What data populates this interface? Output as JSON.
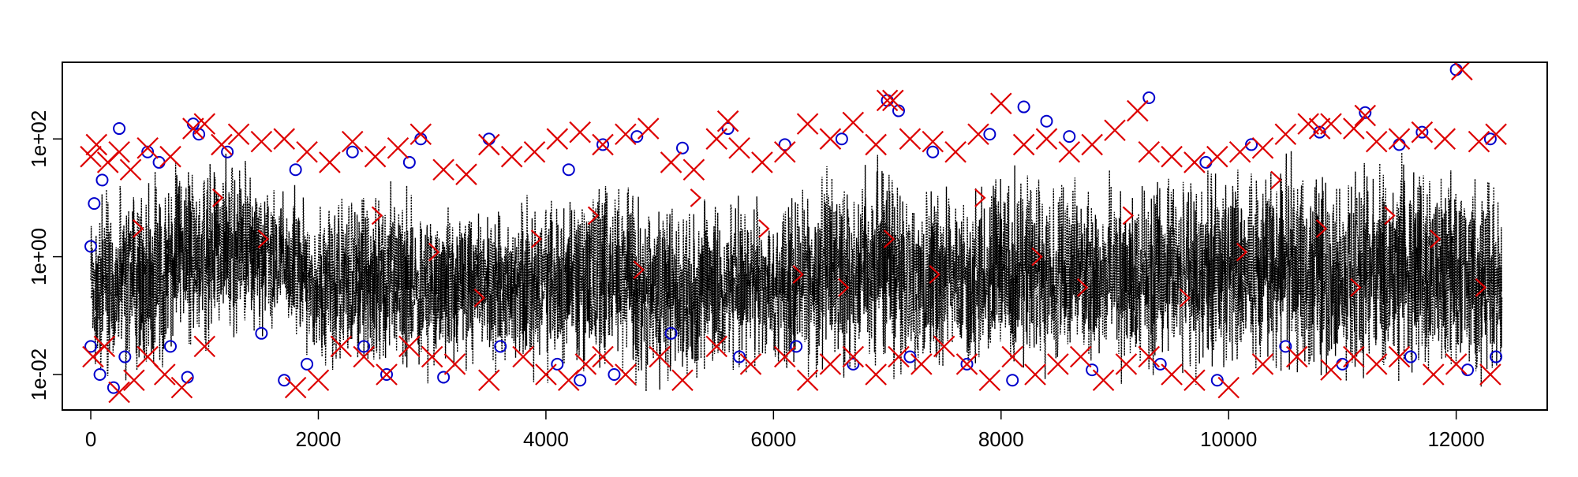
{
  "chart_data": {
    "type": "line",
    "title": "",
    "xlabel": "",
    "ylabel": "",
    "x_scale": "linear",
    "y_scale": "log10",
    "xlim": [
      -250,
      12800
    ],
    "ylim": [
      0.0025,
      2000
    ],
    "x_ticks": [
      0,
      2000,
      4000,
      6000,
      8000,
      10000,
      12000
    ],
    "x_tick_labels": [
      "0",
      "2000",
      "4000",
      "6000",
      "8000",
      "10000",
      "12000"
    ],
    "y_ticks": [
      0.01,
      1,
      100
    ],
    "y_tick_labels": [
      "1e-02",
      "1e+00",
      "1e+02"
    ],
    "grid": false,
    "legend": "none",
    "x_range": [
      0,
      12400
    ],
    "series": [
      {
        "style": "dotted-line",
        "color": "#000000",
        "x": [
          0,
          500,
          1000,
          1500,
          2000,
          2500,
          3000,
          3500,
          4000,
          4500,
          5000,
          5500,
          6000,
          6500,
          7000,
          7500,
          8000,
          8500,
          9000,
          9500,
          10000,
          10500,
          11000,
          11500,
          12000,
          12400
        ],
        "upper": [
          20,
          40,
          80,
          40,
          15,
          30,
          15,
          8,
          20,
          50,
          15,
          20,
          10,
          80,
          100,
          20,
          60,
          50,
          30,
          40,
          50,
          70,
          60,
          80,
          50,
          40
        ],
        "lower": [
          0.005,
          0.006,
          0.02,
          0.04,
          0.01,
          0.008,
          0.006,
          0.01,
          0.005,
          0.006,
          0.004,
          0.006,
          0.008,
          0.004,
          0.004,
          0.008,
          0.005,
          0.008,
          0.005,
          0.006,
          0.005,
          0.006,
          0.005,
          0.005,
          0.005,
          0.006
        ]
      },
      {
        "style": "circle-markers",
        "color": "#0000cc",
        "x": [
          0,
          30,
          100,
          250,
          500,
          600,
          900,
          950,
          1200,
          1800,
          2300,
          2800,
          2900,
          3500,
          4200,
          4500,
          4800,
          5200,
          5600,
          6100,
          6600,
          7000,
          7100,
          7400,
          7900,
          8200,
          8400,
          8600,
          9300,
          9800,
          10200,
          10800,
          11200,
          11500,
          11700,
          12000,
          12300
        ],
        "y": [
          1.5,
          8,
          20,
          150,
          60,
          40,
          180,
          120,
          60,
          30,
          60,
          40,
          100,
          100,
          30,
          80,
          110,
          70,
          150,
          80,
          100,
          450,
          300,
          60,
          120,
          350,
          200,
          110,
          500,
          40,
          80,
          130,
          280,
          80,
          130,
          1500,
          100
        ]
      },
      {
        "style": "circle-markers",
        "color": "#0000cc",
        "x": [
          0,
          80,
          200,
          300,
          700,
          850,
          1500,
          1700,
          1900,
          2400,
          2600,
          3100,
          3600,
          4100,
          4300,
          4600,
          5100,
          5700,
          6200,
          6700,
          7200,
          7700,
          8100,
          8800,
          9400,
          9900,
          10500,
          11000,
          11600,
          12100,
          12350
        ],
        "y": [
          0.03,
          0.01,
          0.006,
          0.02,
          0.03,
          0.009,
          0.05,
          0.008,
          0.015,
          0.03,
          0.01,
          0.009,
          0.03,
          0.015,
          0.008,
          0.01,
          0.05,
          0.02,
          0.03,
          0.015,
          0.02,
          0.015,
          0.008,
          0.012,
          0.015,
          0.008,
          0.03,
          0.015,
          0.02,
          0.012,
          0.02
        ]
      },
      {
        "style": "x-markers",
        "color": "#dd0000",
        "x": [
          0,
          50,
          150,
          250,
          350,
          500,
          700,
          900,
          1000,
          1150,
          1300,
          1500,
          1700,
          1900,
          2100,
          2300,
          2500,
          2700,
          2900,
          3100,
          3300,
          3500,
          3700,
          3900,
          4100,
          4300,
          4500,
          4700,
          4900,
          5100,
          5300,
          5500,
          5600,
          5700,
          5900,
          6100,
          6300,
          6500,
          6700,
          6900,
          7000,
          7050,
          7200,
          7400,
          7600,
          7800,
          8000,
          8200,
          8400,
          8600,
          8800,
          9000,
          9200,
          9300,
          9500,
          9700,
          9900,
          10100,
          10300,
          10500,
          10700,
          10800,
          10900,
          11100,
          11200,
          11300,
          11500,
          11700,
          11900,
          12050,
          12200,
          12350
        ],
        "y": [
          50,
          80,
          40,
          60,
          30,
          70,
          50,
          150,
          180,
          80,
          120,
          90,
          100,
          60,
          40,
          90,
          50,
          70,
          120,
          30,
          25,
          80,
          50,
          60,
          100,
          130,
          80,
          120,
          150,
          40,
          30,
          100,
          200,
          70,
          40,
          60,
          180,
          100,
          190,
          80,
          450,
          450,
          100,
          90,
          60,
          120,
          400,
          80,
          100,
          60,
          80,
          140,
          300,
          60,
          50,
          40,
          50,
          60,
          70,
          120,
          180,
          150,
          180,
          150,
          250,
          90,
          100,
          130,
          100,
          1500,
          90,
          120
        ]
      },
      {
        "style": "x-markers",
        "color": "#dd0000",
        "x": [
          20,
          120,
          250,
          380,
          500,
          650,
          800,
          1000,
          1800,
          2000,
          2200,
          2400,
          2600,
          2800,
          3000,
          3200,
          3500,
          3800,
          4000,
          4200,
          4350,
          4500,
          4700,
          5000,
          5200,
          5500,
          5800,
          6100,
          6300,
          6500,
          6700,
          6900,
          7100,
          7300,
          7500,
          7700,
          7900,
          8100,
          8300,
          8500,
          8700,
          8900,
          9100,
          9300,
          9500,
          9700,
          10000,
          10300,
          10600,
          10900,
          11100,
          11300,
          11500,
          11800,
          12000,
          12300
        ],
        "y": [
          0.02,
          0.03,
          0.005,
          0.008,
          0.02,
          0.01,
          0.006,
          0.03,
          0.006,
          0.008,
          0.03,
          0.02,
          0.01,
          0.03,
          0.02,
          0.015,
          0.008,
          0.02,
          0.01,
          0.008,
          0.015,
          0.02,
          0.01,
          0.02,
          0.008,
          0.03,
          0.015,
          0.02,
          0.008,
          0.015,
          0.02,
          0.01,
          0.02,
          0.015,
          0.03,
          0.015,
          0.008,
          0.02,
          0.01,
          0.015,
          0.02,
          0.008,
          0.015,
          0.02,
          0.01,
          0.008,
          0.006,
          0.015,
          0.02,
          0.012,
          0.02,
          0.015,
          0.02,
          0.01,
          0.015,
          0.01
        ]
      },
      {
        "style": "bracket-markers",
        "color": "#dd0000",
        "x": [
          400,
          1100,
          1500,
          2500,
          3000,
          3400,
          3900,
          4400,
          4800,
          5300,
          5900,
          6200,
          6600,
          7000,
          7400,
          7800,
          8300,
          8700,
          9100,
          9600,
          10100,
          10400,
          10800,
          11100,
          11400,
          11800,
          12200
        ],
        "y": [
          3,
          10,
          2,
          5,
          1.2,
          0.2,
          2,
          5,
          0.6,
          10,
          3,
          0.5,
          0.3,
          2,
          0.5,
          10,
          1,
          0.3,
          5,
          0.2,
          1.2,
          20,
          3,
          0.3,
          5,
          2,
          0.3
        ]
      }
    ]
  }
}
